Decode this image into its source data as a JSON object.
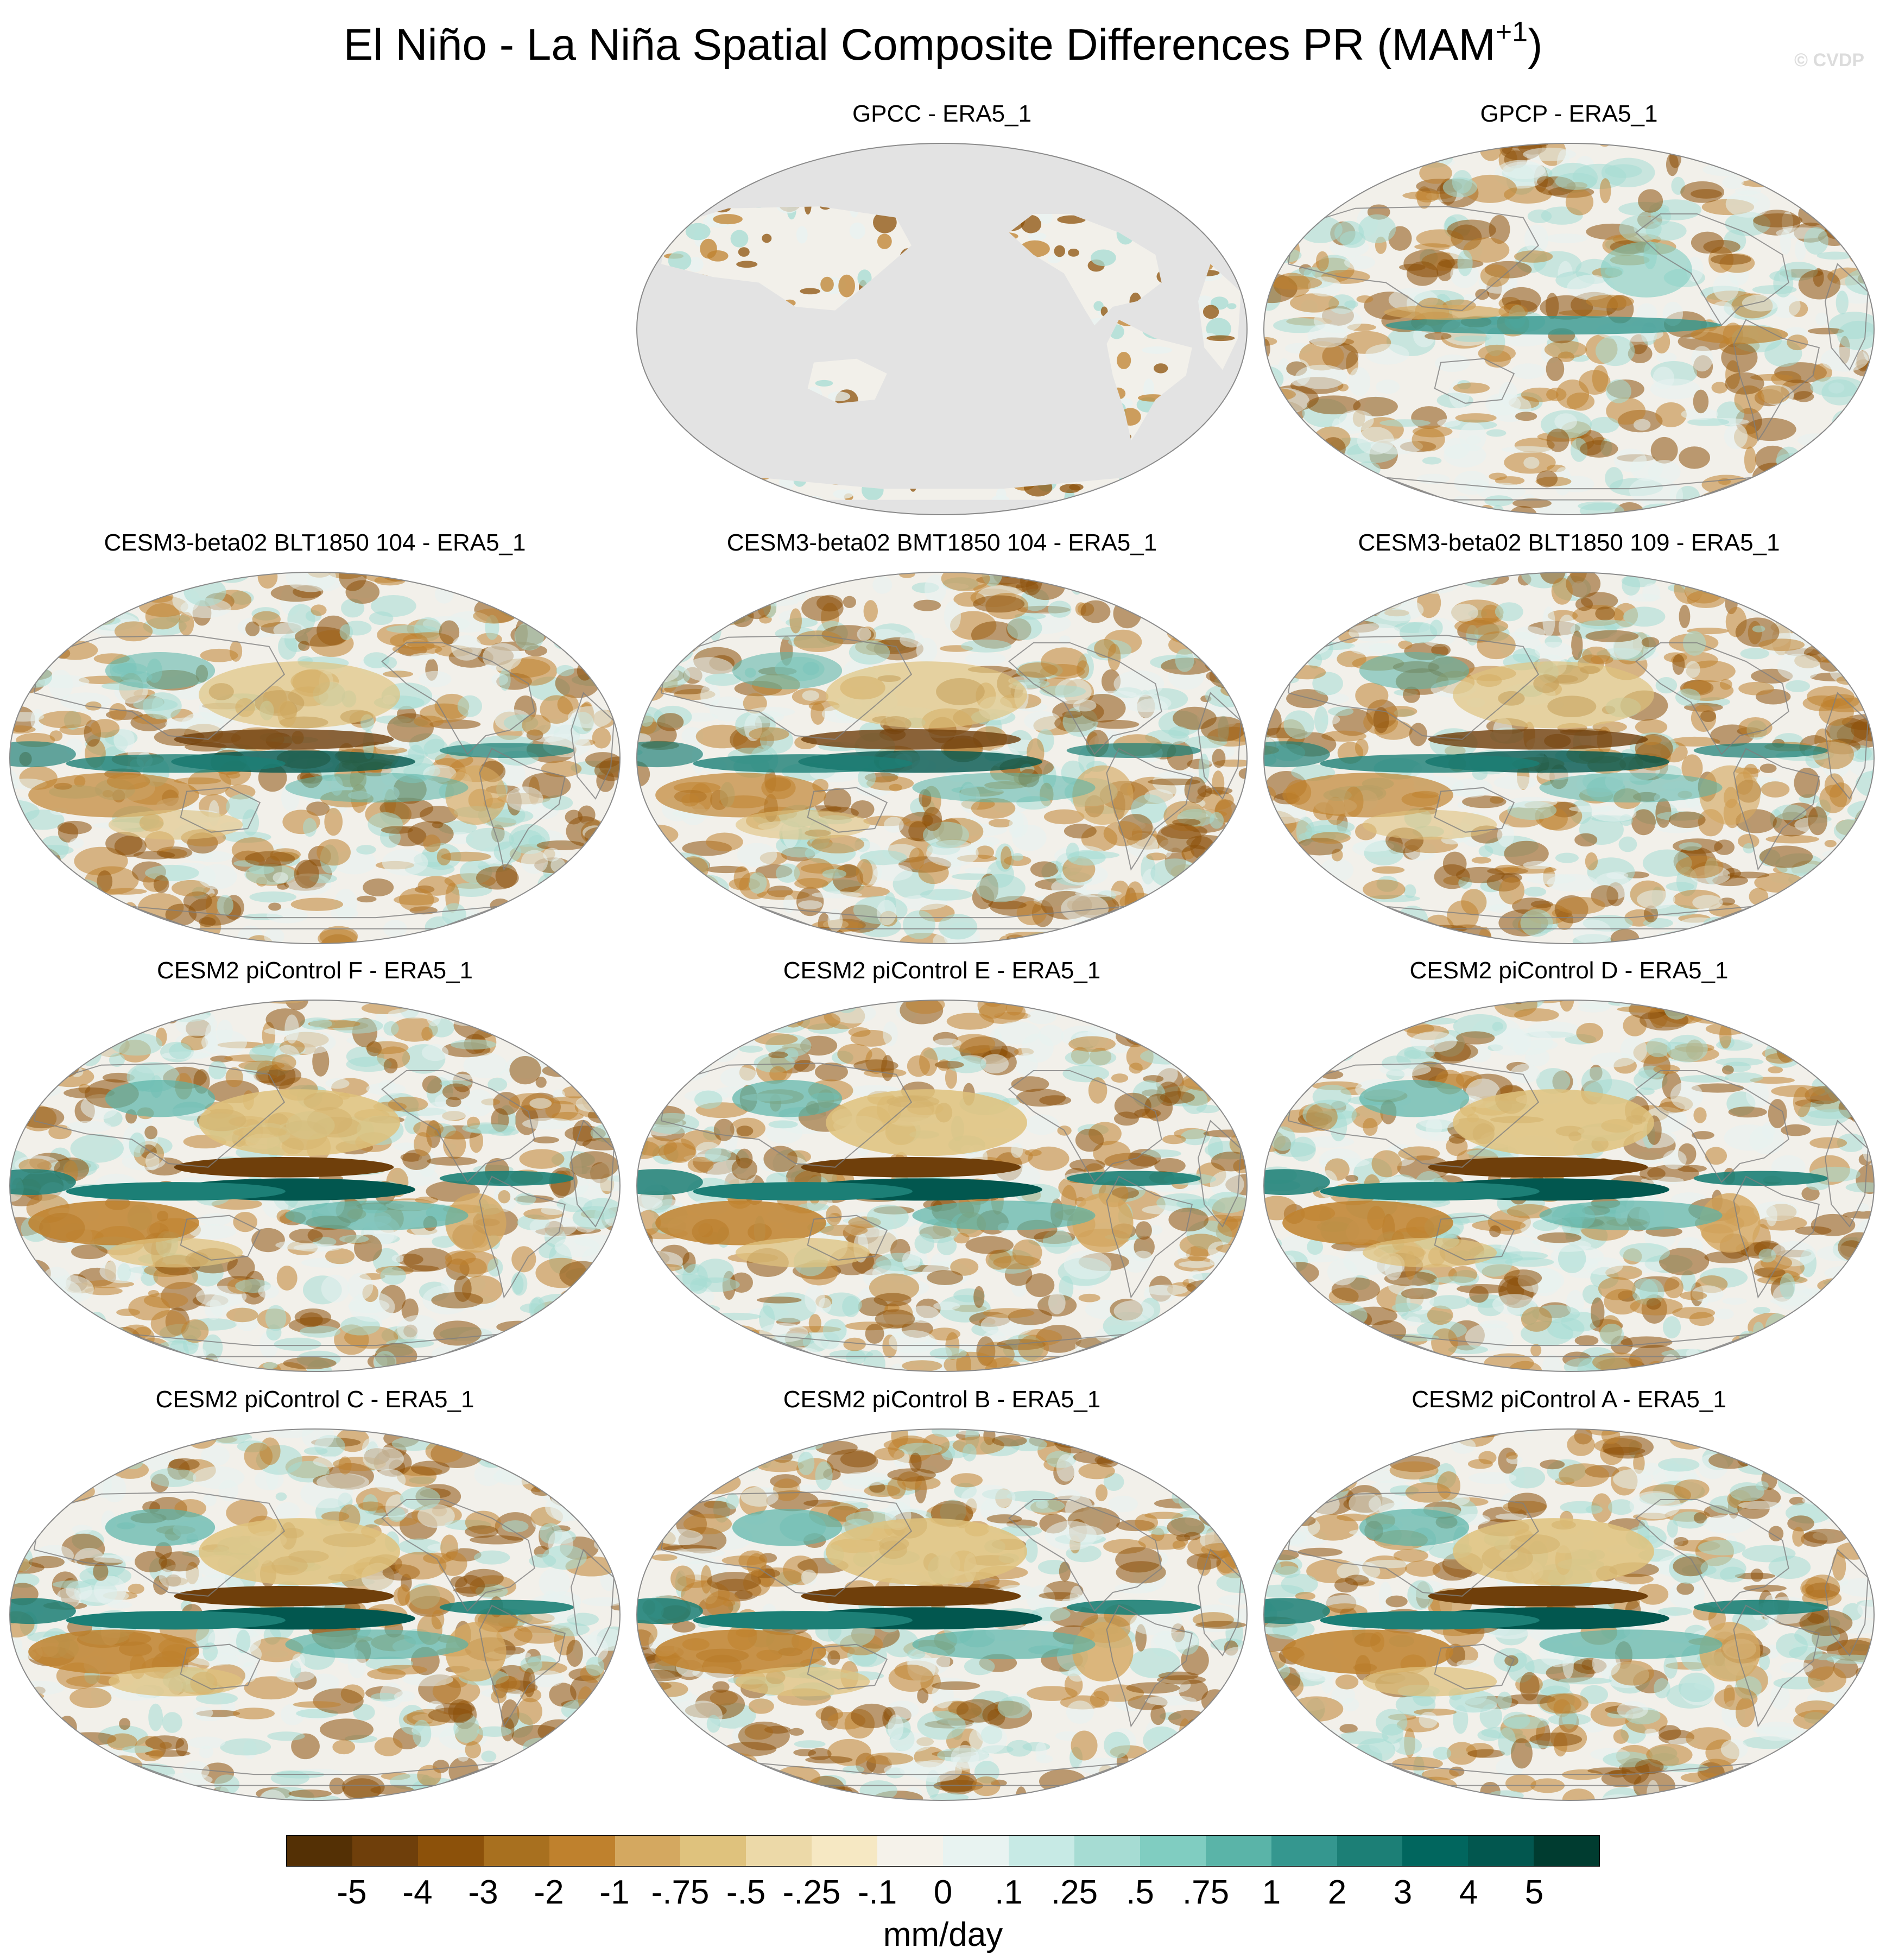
{
  "title": {
    "text": "El Niño - La Niña Spatial Composite Differences PR (MAM",
    "superscript": "+1",
    "suffix": ")"
  },
  "watermark": "© CVDP",
  "colors": {
    "land_mask": "#e3e3e3",
    "ocean_pale": "#f2f0ea",
    "coastline": "#7f7f7f"
  },
  "panels": [
    {
      "title": "GPCC - ERA5_1",
      "pattern": "land_only"
    },
    {
      "title": "GPCP - ERA5_1",
      "pattern": "weak"
    },
    {
      "title": "CESM3-beta02 BLT1850 104 - ERA5_1",
      "pattern": "medium"
    },
    {
      "title": "CESM3-beta02 BMT1850 104 - ERA5_1",
      "pattern": "medium"
    },
    {
      "title": "CESM3-beta02 BLT1850 109 - ERA5_1",
      "pattern": "medium"
    },
    {
      "title": "CESM2 piControl F - ERA5_1",
      "pattern": "strong"
    },
    {
      "title": "CESM2 piControl E - ERA5_1",
      "pattern": "strong"
    },
    {
      "title": "CESM2 piControl D - ERA5_1",
      "pattern": "strong"
    },
    {
      "title": "CESM2 piControl C - ERA5_1",
      "pattern": "strong"
    },
    {
      "title": "CESM2 piControl B - ERA5_1",
      "pattern": "strong"
    },
    {
      "title": "CESM2 piControl A - ERA5_1",
      "pattern": "strong"
    }
  ],
  "colorbar": {
    "labels": [
      "-5",
      "-4",
      "-3",
      "-2",
      "-1",
      "-.75",
      "-.5",
      "-.25",
      "-.1",
      "0",
      ".1",
      ".25",
      ".5",
      ".75",
      "1",
      "2",
      "3",
      "4",
      "5"
    ],
    "colors": [
      "#543005",
      "#6f3f0b",
      "#8c510a",
      "#a8701f",
      "#bf812d",
      "#d4a860",
      "#dfc27d",
      "#ecd9a8",
      "#f6e8c3",
      "#f5f2ea",
      "#e8f3f1",
      "#c7eae5",
      "#a6dcd3",
      "#80cdc1",
      "#5ab4a8",
      "#35978f",
      "#1c7f76",
      "#01665e",
      "#02574f",
      "#003c30"
    ],
    "units": "mm/day"
  }
}
